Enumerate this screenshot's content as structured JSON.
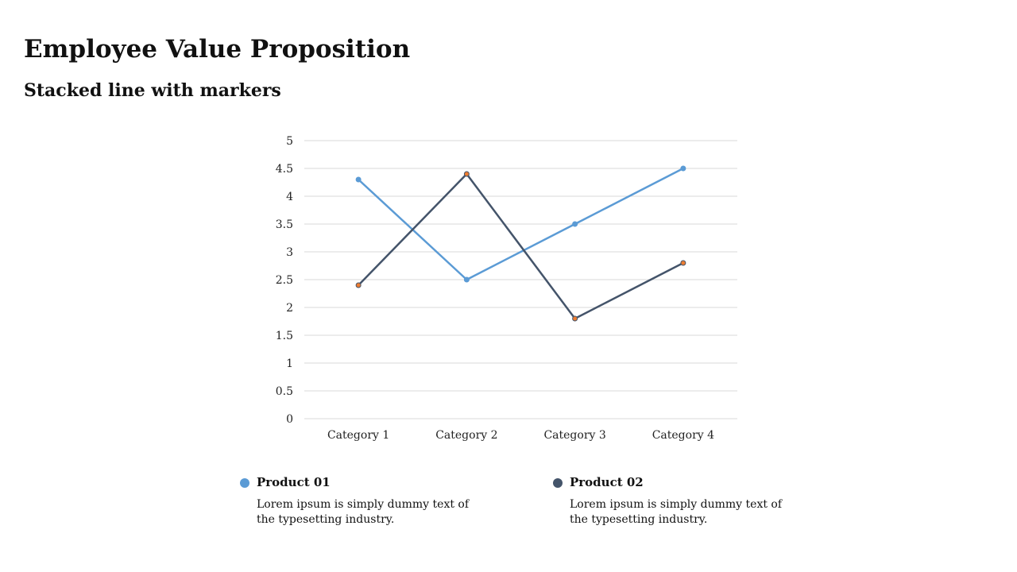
{
  "slide": {
    "title": "Employee Value Proposition",
    "subtitle": "Stacked line with markers"
  },
  "chart_data": {
    "type": "line",
    "categories": [
      "Category 1",
      "Category 2",
      "Category 3",
      "Category 4"
    ],
    "series": [
      {
        "name": "Product 01",
        "values": [
          4.3,
          2.5,
          3.5,
          4.5
        ],
        "color": "#5b9bd5",
        "marker_color": "#5b9bd5"
      },
      {
        "name": "Product 02",
        "values": [
          2.4,
          4.4,
          1.8,
          2.8
        ],
        "color": "#44546a",
        "marker_color": "#ed7d31"
      }
    ],
    "ylim": [
      0,
      5
    ],
    "yticks": [
      "0",
      "0.5",
      "1",
      "1.5",
      "2",
      "2.5",
      "3",
      "3.5",
      "4",
      "4.5",
      "5"
    ],
    "grid": true,
    "legend": "bottom"
  },
  "legend": [
    {
      "name": "Product 01",
      "description": "Lorem ipsum is simply dummy text of the typesetting industry.",
      "color": "#5b9bd5"
    },
    {
      "name": "Product 02",
      "description": "Lorem ipsum is simply dummy text of the typesetting industry.",
      "color": "#44546a"
    }
  ]
}
